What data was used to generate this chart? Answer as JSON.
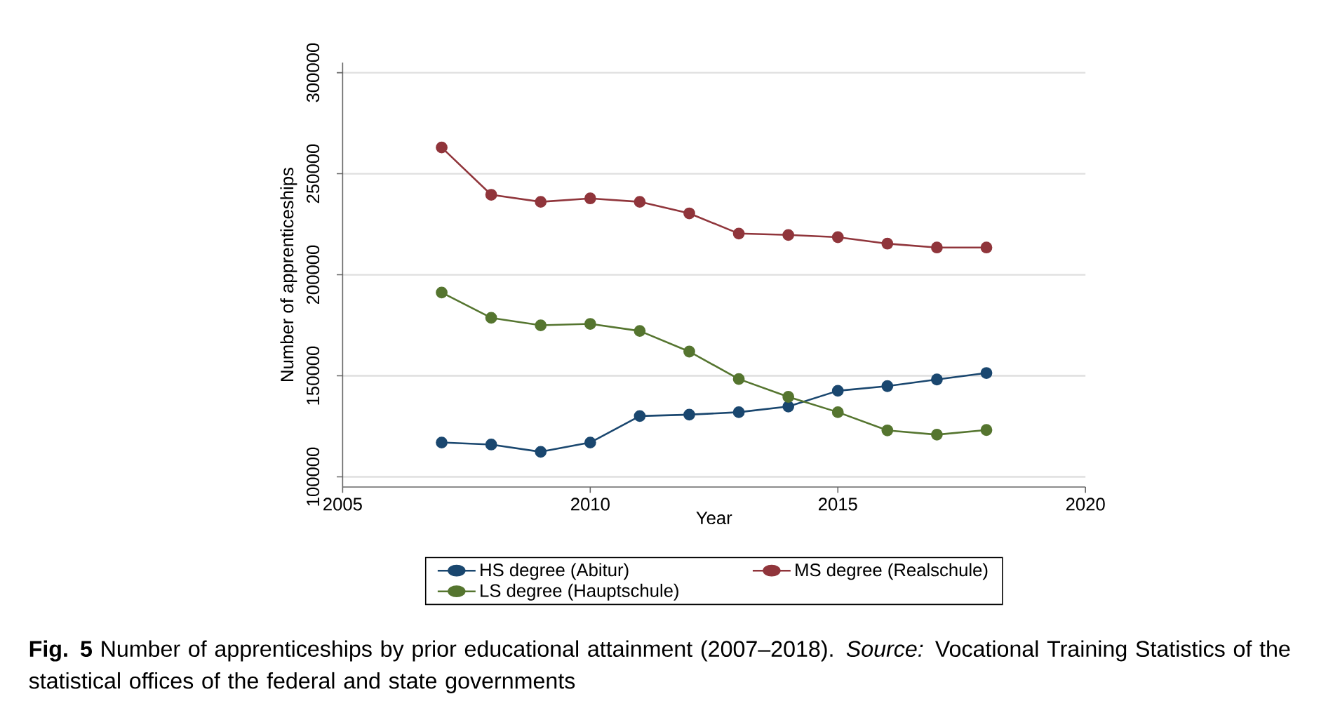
{
  "chart_data": {
    "type": "line",
    "xlabel": "Year",
    "ylabel": "Number of apprenticeships",
    "x": [
      2007,
      2008,
      2009,
      2010,
      2011,
      2012,
      2013,
      2014,
      2015,
      2016,
      2017,
      2018
    ],
    "series": [
      {
        "name": "HS degree (Abitur)",
        "color": "#1a476f",
        "values": [
          117000,
          116000,
          112400,
          117000,
          130100,
          130800,
          132000,
          134800,
          142600,
          144900,
          148200,
          151400
        ]
      },
      {
        "name": "MS degree (Realschule)",
        "color": "#90353b",
        "values": [
          263000,
          239600,
          236100,
          237800,
          236100,
          230400,
          220400,
          219700,
          218600,
          215400,
          213500,
          213500
        ]
      },
      {
        "name": "LS degree (Hauptschule)",
        "color": "#55752f",
        "values": [
          191200,
          178700,
          175000,
          175700,
          172200,
          162000,
          148400,
          139600,
          132000,
          123000,
          120900,
          123200
        ]
      }
    ],
    "xlim": [
      2005,
      2020
    ],
    "xticks": [
      2005,
      2010,
      2015,
      2020
    ],
    "ylim": [
      95000,
      305000
    ],
    "yticks": [
      100000,
      150000,
      200000,
      250000,
      300000
    ],
    "grid": "y",
    "legend": "bottom",
    "marker": "circle",
    "line_style": "solid",
    "annotations": [
      "**Fig. 5** Number of apprenticeships by prior educational attainment (2007–2018). *Source:* Vocational Training Statistics of the statistical offices of the federal and state governments"
    ]
  }
}
